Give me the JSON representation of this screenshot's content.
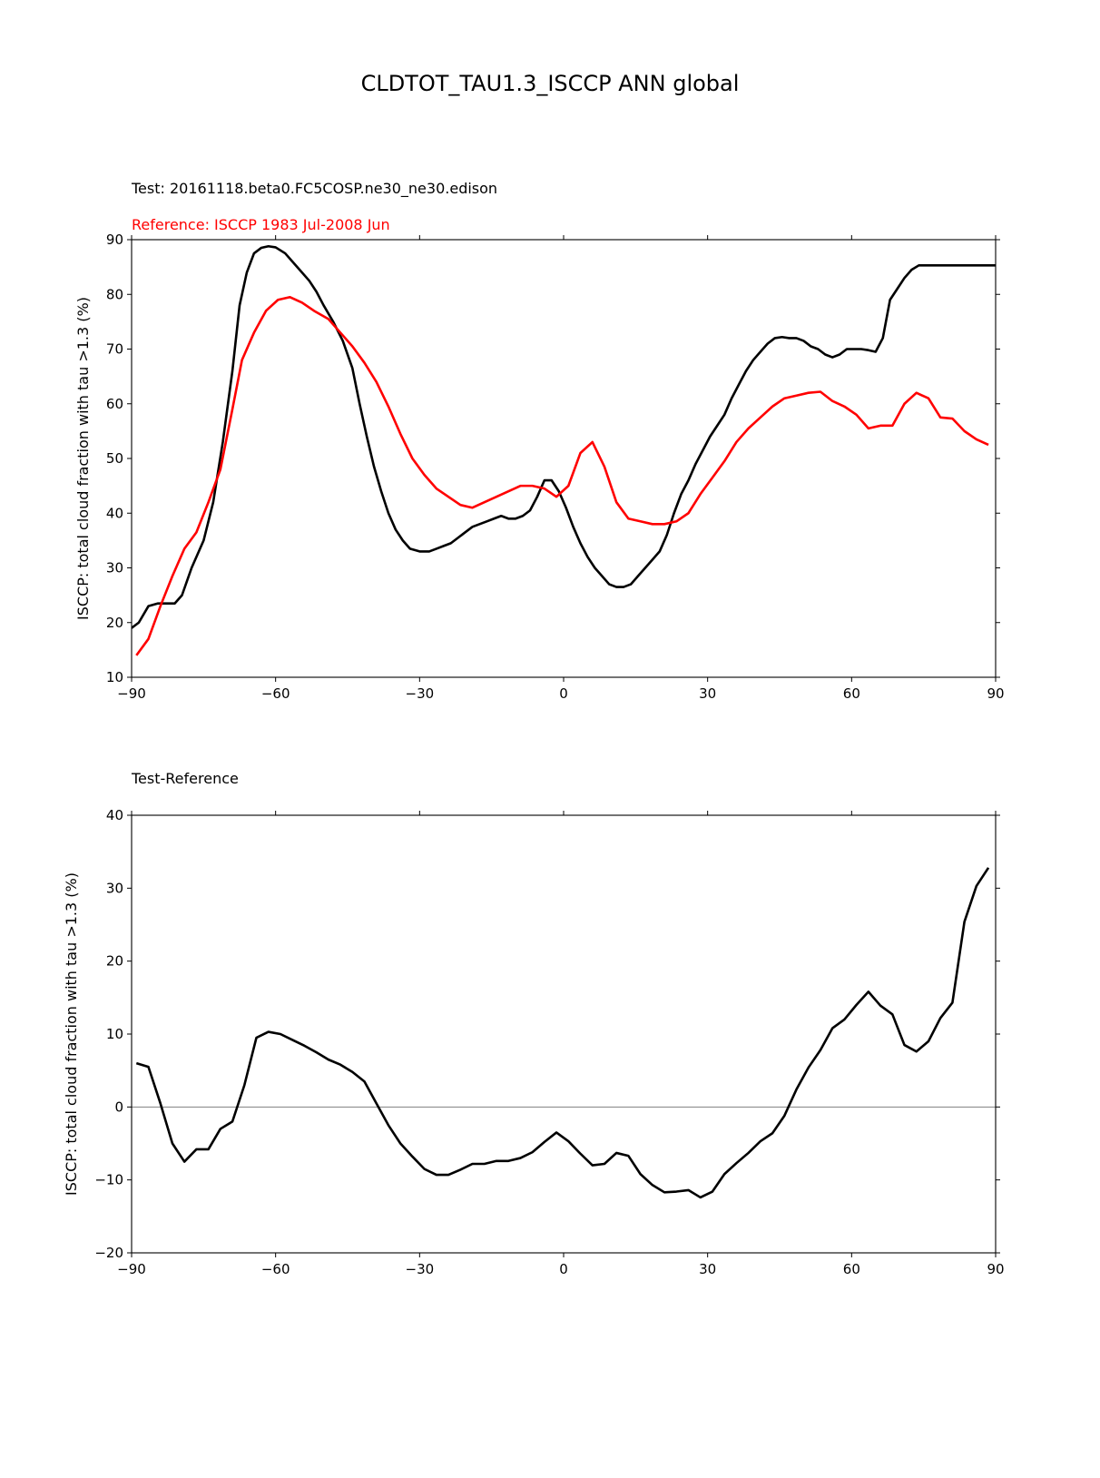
{
  "figure": {
    "title": "CLDTOT_TAU1.3_ISCCP ANN global"
  },
  "chart_data": [
    {
      "type": "line",
      "test_label": "Test: 20161118.beta0.FC5COSP.ne30_ne30.edison",
      "reference_label": "Reference: ISCCP 1983 Jul-2008 Jun",
      "xlabel": "",
      "ylabel": "ISCCP: total cloud fraction with tau >1.3 (%)",
      "xlim": [
        -90,
        90
      ],
      "ylim": [
        10,
        90
      ],
      "xticks": [
        -90,
        -60,
        -30,
        0,
        30,
        60,
        90
      ],
      "xtick_labels": [
        "−90",
        "−60",
        "−30",
        "0",
        "30",
        "60",
        "90"
      ],
      "yticks": [
        10,
        20,
        30,
        40,
        50,
        60,
        70,
        80,
        90
      ],
      "ytick_labels": [
        "10",
        "20",
        "30",
        "40",
        "50",
        "60",
        "70",
        "80",
        "90"
      ],
      "series": [
        {
          "role": "test",
          "color": "#000000",
          "x": [
            -90,
            -88.5,
            -86.5,
            -84.5,
            -82.5,
            -81,
            -79.5,
            -77.5,
            -75,
            -73,
            -71,
            -69,
            -67.5,
            -66,
            -64.5,
            -63,
            -61.5,
            -60,
            -58,
            -56.5,
            -55,
            -53,
            -51.5,
            -50,
            -48,
            -46,
            -44,
            -42.5,
            -41,
            -39.5,
            -38,
            -36.5,
            -35,
            -33.5,
            -32,
            -30,
            -28,
            -26.5,
            -25,
            -23.5,
            -22,
            -20.5,
            -19,
            -17.5,
            -16,
            -14.5,
            -13,
            -11.5,
            -10,
            -8.5,
            -7,
            -5.5,
            -4,
            -2.5,
            -1,
            0.5,
            2,
            3.5,
            5,
            6.5,
            8,
            9.5,
            11,
            12.5,
            14,
            15.5,
            17,
            18.5,
            20,
            21.5,
            23,
            24.5,
            26,
            27.5,
            29,
            30.5,
            32,
            33.5,
            35,
            36.5,
            38,
            39.5,
            41,
            42.5,
            44,
            45.5,
            47,
            48.5,
            50,
            51.5,
            53,
            54.5,
            56,
            57.5,
            59,
            60.5,
            62,
            63.5,
            65,
            66.5,
            68,
            69.5,
            71,
            72.5,
            74,
            75.5,
            77,
            78.5,
            80,
            81.5,
            83,
            84.5,
            86,
            87.5,
            89,
            90
          ],
          "y": [
            19,
            20,
            23,
            23.5,
            23.5,
            23.5,
            25,
            30,
            35,
            42,
            53,
            66,
            78,
            84,
            87.5,
            88.5,
            88.8,
            88.6,
            87.5,
            86,
            84.5,
            82.5,
            80.5,
            78,
            75,
            71.5,
            66.5,
            60,
            54,
            48.5,
            44,
            40,
            37,
            35,
            33.5,
            33,
            33,
            33.5,
            34,
            34.5,
            35.5,
            36.5,
            37.5,
            38,
            38.5,
            39,
            39.5,
            39,
            39,
            39.5,
            40.5,
            43,
            46,
            46,
            44,
            41,
            37.5,
            34.5,
            32,
            30,
            28.5,
            27,
            26.5,
            26.5,
            27,
            28.5,
            30,
            31.5,
            33,
            36,
            40,
            43.5,
            46,
            49,
            51.5,
            54,
            56,
            58,
            61,
            63.5,
            66,
            68,
            69.5,
            71,
            72,
            72.2,
            72,
            72,
            71.5,
            70.5,
            70,
            69,
            68.5,
            69,
            70,
            70,
            70,
            69.8,
            69.5,
            72,
            79,
            81,
            83,
            84.5,
            85.3,
            85.3,
            85.3,
            85.3,
            85.3,
            85.3,
            85.3,
            85.3,
            85.3,
            85.3,
            85.3,
            85.3
          ],
          "x_clip": 89
        },
        {
          "role": "reference",
          "color": "#ff0000",
          "x": [
            -89,
            -86.5,
            -84,
            -81.5,
            -79,
            -76.5,
            -74,
            -71.5,
            -69,
            -67,
            -64.5,
            -62,
            -59.5,
            -57,
            -54.5,
            -52,
            -49,
            -46.5,
            -44,
            -41.5,
            -39,
            -36.5,
            -34,
            -31.5,
            -29,
            -26.5,
            -24,
            -21.5,
            -19,
            -16.5,
            -14,
            -11.5,
            -9,
            -6.5,
            -4,
            -1.5,
            1,
            3.5,
            6,
            8.5,
            11,
            13.5,
            16,
            18.5,
            21,
            23.5,
            26,
            28.5,
            31,
            33.5,
            36,
            38.5,
            41,
            43.5,
            46,
            48.5,
            51,
            53.5,
            56,
            58.5,
            61,
            63.5,
            66,
            68.5,
            71,
            73.5,
            76,
            78.5,
            81,
            83.5,
            86,
            88.5
          ],
          "y": [
            14,
            17,
            23,
            28.5,
            33.5,
            36.5,
            42,
            48,
            59,
            68,
            73,
            77,
            79,
            79.5,
            78.5,
            77,
            75.5,
            73,
            70.5,
            67.5,
            64,
            59.5,
            54.5,
            50,
            47,
            44.5,
            43,
            41.5,
            41,
            42,
            43,
            44,
            45,
            45,
            44.5,
            43,
            45,
            51,
            53,
            48.5,
            42,
            39,
            38.5,
            38,
            38,
            38.5,
            40,
            43.5,
            46.5,
            49.5,
            53,
            55.5,
            57.5,
            59.5,
            61,
            61.5,
            62,
            62.2,
            60.5,
            59.5,
            58,
            55.5,
            56,
            56,
            60,
            62,
            61,
            57.5,
            57.3,
            55,
            53.5,
            52.5
          ]
        }
      ]
    },
    {
      "type": "line",
      "title": "Test-Reference",
      "xlabel": "",
      "ylabel": "ISCCP: total cloud fraction with tau >1.3 (%)",
      "xlim": [
        -90,
        90
      ],
      "ylim": [
        -20,
        40
      ],
      "xticks": [
        -90,
        -60,
        -30,
        0,
        30,
        60,
        90
      ],
      "xtick_labels": [
        "−90",
        "−60",
        "−30",
        "0",
        "30",
        "60",
        "90"
      ],
      "yticks": [
        -20,
        -10,
        0,
        10,
        20,
        30,
        40
      ],
      "ytick_labels": [
        "−20",
        "−10",
        "0",
        "10",
        "20",
        "30",
        "40"
      ],
      "zero_line": true,
      "zero_line_color": "#808080",
      "series": [
        {
          "role": "difference",
          "color": "#000000",
          "x": [
            -89,
            -86.5,
            -84,
            -81.5,
            -79,
            -76.5,
            -74,
            -71.5,
            -69,
            -66.5,
            -64,
            -61.5,
            -59,
            -56.5,
            -54,
            -51.5,
            -49,
            -46.5,
            -44,
            -41.5,
            -39,
            -36.5,
            -34,
            -31.5,
            -29,
            -26.5,
            -24,
            -21.5,
            -19,
            -16.5,
            -14,
            -11.5,
            -9,
            -6.5,
            -4,
            -1.5,
            1,
            3.5,
            6,
            8.5,
            11,
            13.5,
            16,
            18.5,
            21,
            23.5,
            26,
            28.5,
            31,
            33.5,
            36,
            38.5,
            41,
            43.5,
            46,
            48.5,
            51,
            53.5,
            56,
            58.5,
            61,
            63.5,
            66,
            68.5,
            71,
            73.5,
            76,
            78.5,
            81,
            83.5,
            86,
            88.5
          ],
          "y": [
            6,
            5.5,
            0.5,
            -5,
            -7.5,
            -5.8,
            -5.8,
            -3,
            -2,
            3,
            9.5,
            10.3,
            10,
            9.2,
            8.4,
            7.5,
            6.5,
            5.8,
            4.8,
            3.5,
            0.5,
            -2.5,
            -5,
            -6.8,
            -8.5,
            -9.3,
            -9.3,
            -8.6,
            -7.8,
            -7.8,
            -7.4,
            -7.4,
            -7,
            -6.2,
            -4.8,
            -3.5,
            -4.7,
            -6.4,
            -8,
            -7.8,
            -6.3,
            -6.7,
            -9.2,
            -10.7,
            -11.7,
            -11.6,
            -11.4,
            -12.4,
            -11.6,
            -9.2,
            -7.7,
            -6.3,
            -4.7,
            -3.6,
            -1.2,
            2.4,
            5.4,
            7.8,
            10.8,
            12,
            14,
            15.8,
            13.9,
            12.7,
            8.5,
            7.6,
            9,
            12.2,
            14.3,
            25.4,
            30.3,
            32.8
          ]
        }
      ]
    }
  ]
}
